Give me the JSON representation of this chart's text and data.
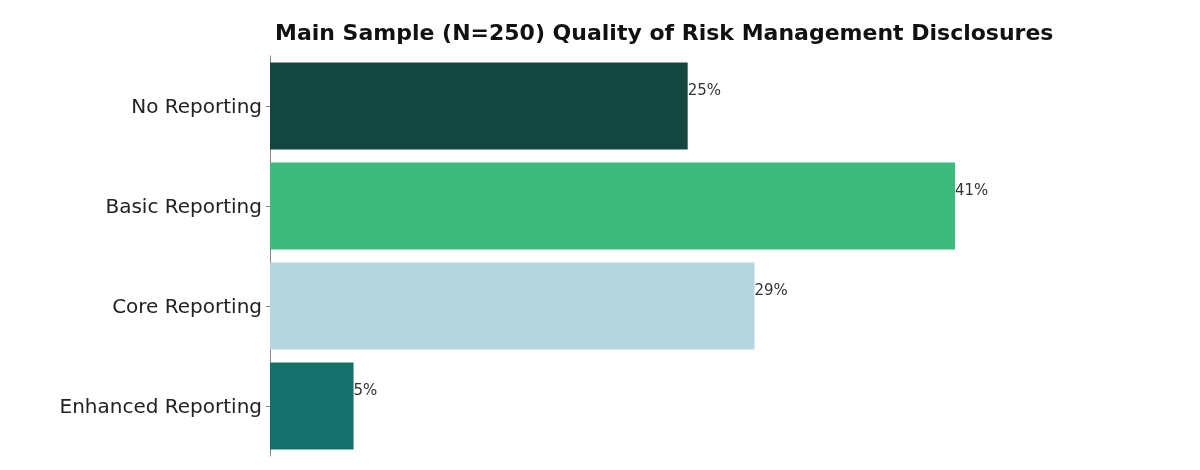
{
  "chart_data": {
    "type": "bar",
    "orientation": "horizontal",
    "title": "Main Sample (N=250) Quality of Risk Management Disclosures",
    "categories": [
      "No Reporting",
      "Basic Reporting",
      "Core Reporting",
      "Enhanced Reporting"
    ],
    "values": [
      25,
      41,
      29,
      5
    ],
    "colors": [
      "#12463e",
      "#3dbb7c",
      "#b5d5df",
      "#13706b"
    ],
    "value_labels": [
      "25%",
      "41%",
      "29%",
      "5%"
    ]
  }
}
